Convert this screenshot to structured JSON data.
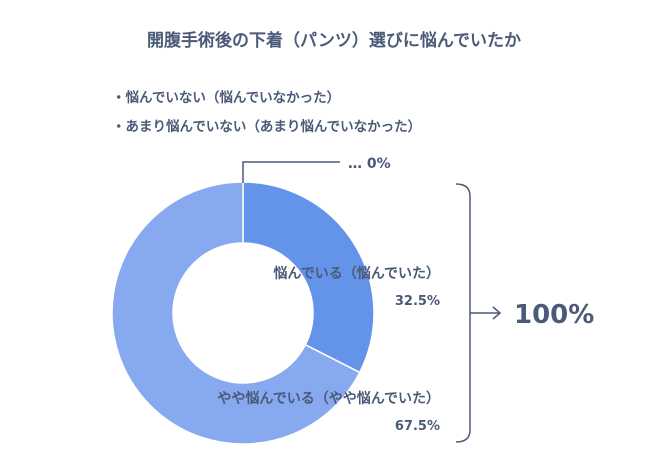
{
  "colors": {
    "slice_dark": "#6494ea",
    "slice_light": "#86a9ef",
    "text": "#4a5a78",
    "line": "#4a5a78",
    "background": "#ffffff"
  },
  "chart_data": {
    "type": "pie",
    "variant": "donut",
    "title": "開腹手術後の下着（パンツ）選びに悩んでいたか",
    "notes": [
      "・悩んでいない（悩んでいなかった）",
      "・あまり悩んでいない（あまり悩んでいなかった）"
    ],
    "zero_callout": "… 0%",
    "slices": [
      {
        "label": "悩んでいる（悩んでいた）",
        "value": 32.5,
        "value_label": "32.5%",
        "color": "#6494ea"
      },
      {
        "label": "やや悩んでいる（やや悩んでいた）",
        "value": 67.5,
        "value_label": "67.5%",
        "color": "#86a9ef"
      }
    ],
    "total_label": "100%"
  }
}
